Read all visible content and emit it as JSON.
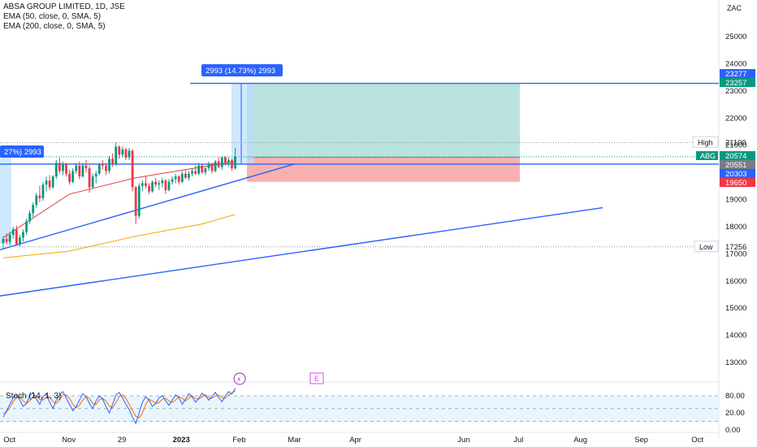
{
  "chart_data": {
    "type": "candlestick",
    "symbol": "ABSA GROUP LIMITED",
    "header": "ABSA GROUP LIMITED, 1D, JSE",
    "currency": "ZAC",
    "indicators": [
      "EMA (50, close, 0, SMA, 5)",
      "EMA (200, close, 0, SMA, 5)"
    ],
    "y_axis": {
      "ticks": [
        25000,
        24000,
        23000,
        22000,
        21000,
        20000,
        19000,
        18000,
        17000,
        16000,
        15000,
        14000,
        13000
      ],
      "labels": [
        "25000",
        "24000",
        "23000",
        "22000",
        "21000",
        "20000",
        "19000",
        "18000",
        "17000",
        "16000",
        "15000",
        "14000",
        "13000"
      ],
      "range": [
        12500,
        25800
      ]
    },
    "x_axis": {
      "ticks": [
        "Oct",
        "Nov",
        "29",
        "2023",
        "Feb",
        "Mar",
        "Apr",
        "Jun",
        "Jul",
        "Aug",
        "Sep",
        "Oct"
      ]
    },
    "price_tags": [
      {
        "label": "23277",
        "price": 23277,
        "color": "#2962ff"
      },
      {
        "label": "23257",
        "price": 23257,
        "color": "#089981"
      },
      {
        "label": "20574",
        "price": 20574,
        "color": "#089981",
        "ticker": "ABG"
      },
      {
        "label": "20551",
        "price": 20551,
        "color": "#787b86"
      },
      {
        "label": "20303",
        "price": 20303,
        "color": "#2962ff"
      },
      {
        "label": "19650",
        "price": 19650,
        "color": "#f23645"
      }
    ],
    "high": {
      "label": "High",
      "value": "21100",
      "price": 21100
    },
    "low": {
      "label": "Low",
      "value": "17256",
      "price": 17256
    },
    "position": {
      "entry": 20551,
      "target": 23257,
      "stop": 19650,
      "label_top": "2993 (14.73%) 2993",
      "label_left": "27%) 2993"
    },
    "ohlc": [
      [
        17400,
        17650,
        17200,
        17550
      ],
      [
        17550,
        17750,
        17350,
        17450
      ],
      [
        17450,
        17800,
        17300,
        17700
      ],
      [
        17700,
        18000,
        17550,
        17900
      ],
      [
        17900,
        18050,
        17300,
        17350
      ],
      [
        17350,
        17700,
        17256,
        17600
      ],
      [
        17600,
        17900,
        17450,
        17800
      ],
      [
        17800,
        18300,
        17700,
        18200
      ],
      [
        18200,
        18600,
        18100,
        18500
      ],
      [
        18500,
        18900,
        18350,
        18800
      ],
      [
        18800,
        19250,
        18700,
        19150
      ],
      [
        19150,
        19500,
        18900,
        19050
      ],
      [
        19050,
        19650,
        18950,
        19550
      ],
      [
        19550,
        19850,
        19300,
        19700
      ],
      [
        19700,
        19900,
        19350,
        19450
      ],
      [
        19450,
        19900,
        19400,
        19850
      ],
      [
        19850,
        20450,
        19750,
        20350
      ],
      [
        20350,
        20550,
        19950,
        20050
      ],
      [
        20050,
        20400,
        19900,
        20300
      ],
      [
        20300,
        20350,
        19850,
        19950
      ],
      [
        19950,
        20100,
        19550,
        19650
      ],
      [
        19650,
        20150,
        19600,
        20050
      ],
      [
        20050,
        20350,
        19950,
        20250
      ],
      [
        20250,
        20400,
        19750,
        19850
      ],
      [
        19850,
        20350,
        19800,
        20250
      ],
      [
        20250,
        20450,
        20000,
        20150
      ],
      [
        20150,
        20250,
        19250,
        19450
      ],
      [
        19450,
        19950,
        19400,
        19850
      ],
      [
        19850,
        20050,
        19600,
        19950
      ],
      [
        19950,
        20350,
        19900,
        20300
      ],
      [
        20300,
        20450,
        20100,
        20250
      ],
      [
        20250,
        20350,
        19900,
        20050
      ],
      [
        20050,
        20600,
        19950,
        20500
      ],
      [
        20500,
        20700,
        20200,
        20300
      ],
      [
        20300,
        21100,
        20250,
        20950
      ],
      [
        20950,
        21000,
        20500,
        20650
      ],
      [
        20650,
        20950,
        20550,
        20850
      ],
      [
        20850,
        20900,
        20450,
        20550
      ],
      [
        20550,
        20900,
        20450,
        20800
      ],
      [
        20800,
        20850,
        19300,
        19450
      ],
      [
        19450,
        19500,
        18100,
        18400
      ],
      [
        18400,
        19600,
        18300,
        19500
      ],
      [
        19500,
        19700,
        19300,
        19600
      ],
      [
        19600,
        19850,
        19400,
        19500
      ],
      [
        19500,
        19600,
        19200,
        19300
      ],
      [
        19300,
        19700,
        19250,
        19650
      ],
      [
        19650,
        19800,
        19450,
        19550
      ],
      [
        19550,
        19700,
        19350,
        19600
      ],
      [
        19600,
        19800,
        19450,
        19700
      ],
      [
        19700,
        19750,
        19200,
        19350
      ],
      [
        19350,
        19750,
        19300,
        19650
      ],
      [
        19650,
        19850,
        19550,
        19750
      ],
      [
        19750,
        19950,
        19600,
        19850
      ],
      [
        19850,
        19900,
        19550,
        19650
      ],
      [
        19650,
        20050,
        19600,
        19950
      ],
      [
        19950,
        20100,
        19750,
        19800
      ],
      [
        19800,
        20050,
        19700,
        19950
      ],
      [
        19950,
        20150,
        19850,
        20050
      ],
      [
        20050,
        20250,
        19900,
        19950
      ],
      [
        19950,
        20350,
        19900,
        20250
      ],
      [
        20250,
        20300,
        19950,
        20000
      ],
      [
        20000,
        20200,
        19900,
        20150
      ],
      [
        20150,
        20400,
        20050,
        20300
      ],
      [
        20300,
        20350,
        19950,
        20050
      ],
      [
        20050,
        20450,
        20000,
        20400
      ],
      [
        20400,
        20550,
        20150,
        20200
      ],
      [
        20200,
        20600,
        20100,
        20550
      ],
      [
        20550,
        20600,
        20250,
        20350
      ],
      [
        20350,
        20550,
        20200,
        20450
      ],
      [
        20450,
        20500,
        20050,
        20150
      ],
      [
        20150,
        20900,
        20100,
        20574
      ]
    ],
    "ema50": [
      [
        0,
        17600
      ],
      [
        20,
        19200
      ],
      [
        40,
        19800
      ],
      [
        60,
        20200
      ],
      [
        70,
        20400
      ]
    ],
    "ema200": [
      [
        0,
        16850
      ],
      [
        20,
        17100
      ],
      [
        40,
        17650
      ],
      [
        60,
        18100
      ],
      [
        70,
        18450
      ]
    ],
    "trendlines": [
      {
        "p1": [
          "Oct",
          17250
        ],
        "p2": [
          "Mar",
          20580
        ]
      },
      {
        "p1": [
          "start",
          15450
        ],
        "p2": [
          "Aug",
          18700
        ]
      },
      {
        "p1": [
          "Feb",
          20303
        ],
        "p2": [
          "end",
          20303
        ]
      },
      {
        "p1": [
          "Feb",
          23277
        ],
        "p2": [
          "end",
          23277
        ]
      }
    ],
    "stoch": {
      "label": "Stoch (14, 1, 3)",
      "ticks": [
        "80.00",
        "20.00",
        "0.00"
      ],
      "bands": [
        80,
        50,
        20
      ],
      "k": [
        30,
        45,
        60,
        75,
        82,
        70,
        55,
        62,
        80,
        88,
        72,
        60,
        78,
        85,
        65,
        50,
        70,
        82,
        90,
        75,
        60,
        45,
        55,
        70,
        85,
        78,
        62,
        50,
        68,
        80,
        72,
        55,
        40,
        60,
        82,
        88,
        75,
        60,
        48,
        30,
        15,
        40,
        65,
        78,
        70,
        55,
        62,
        75,
        80,
        68,
        58,
        70,
        82,
        76,
        60,
        72,
        85,
        78,
        65,
        74,
        86,
        80,
        70,
        78,
        88,
        76,
        66,
        80,
        90,
        84,
        98
      ],
      "d": [
        38,
        42,
        52,
        66,
        76,
        78,
        68,
        62,
        68,
        78,
        80,
        72,
        70,
        76,
        78,
        66,
        62,
        70,
        82,
        82,
        74,
        60,
        52,
        58,
        70,
        78,
        74,
        62,
        60,
        70,
        74,
        68,
        56,
        52,
        64,
        78,
        82,
        74,
        60,
        46,
        32,
        28,
        40,
        60,
        72,
        68,
        62,
        64,
        72,
        74,
        68,
        64,
        70,
        78,
        74,
        68,
        74,
        80,
        74,
        72,
        78,
        82,
        76,
        74,
        80,
        82,
        76,
        74,
        82,
        86,
        92
      ],
      "events": [
        "⚡",
        "E"
      ]
    }
  }
}
